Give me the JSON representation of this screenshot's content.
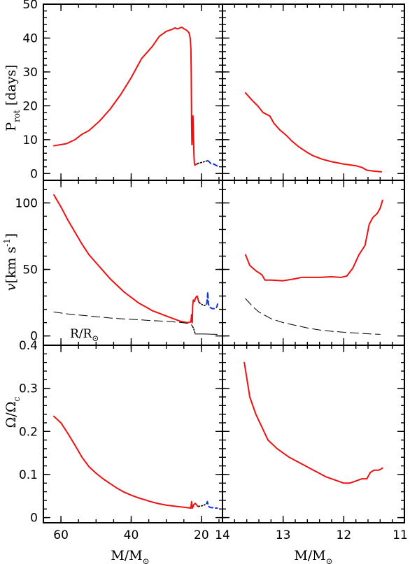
{
  "chart_data": [
    {
      "id": "prot_left",
      "type": "line",
      "ylabel": "P_rot [days]",
      "xlim": [
        65,
        14
      ],
      "ylim": [
        -2,
        50
      ],
      "xticks_major": [
        60,
        40,
        20
      ],
      "xticks_minor_step": 5,
      "yticks_major": [
        0,
        10,
        20,
        30,
        40,
        50
      ],
      "yticks_minor_step": 2,
      "xticklabels": [],
      "yticklabels": [
        "0",
        "10",
        "20",
        "30",
        "40",
        "50"
      ],
      "series": [
        {
          "style": "red-solid",
          "x": [
            62.0,
            58.5,
            56.0,
            54.0,
            52.0,
            49.0,
            46.0,
            43.0,
            40.0,
            37.0,
            34.0,
            32.0,
            30.0,
            28.5,
            27.5,
            26.8,
            25.6,
            24.9,
            24.5,
            23.9,
            23.5,
            23.2,
            23.0,
            22.9,
            22.8,
            22.7,
            22.5,
            22.4,
            22.3,
            22.2,
            22.1,
            22.0,
            21.9,
            21.8,
            21.6,
            21.3,
            21.0
          ],
          "y": [
            8.2,
            8.8,
            10.0,
            11.6,
            12.7,
            15.5,
            19.0,
            23.3,
            28.3,
            34.0,
            37.5,
            40.5,
            42.0,
            42.5,
            43.0,
            42.7,
            43.2,
            42.7,
            42.5,
            42.0,
            41.5,
            40.0,
            37.0,
            30.0,
            15.0,
            8.5,
            12.0,
            17.0,
            13.0,
            8.5,
            5.0,
            3.0,
            2.5,
            2.5,
            2.7,
            2.8,
            3.0
          ]
        },
        {
          "style": "black-dotted",
          "x": [
            21.0,
            20.2,
            19.5,
            18.8,
            18.2
          ],
          "y": [
            3.0,
            3.2,
            3.4,
            3.6,
            3.8
          ]
        },
        {
          "style": "blue-dashed",
          "x": [
            18.2,
            17.8,
            17.3,
            16.8,
            16.3,
            15.8,
            15.4
          ],
          "y": [
            3.8,
            3.5,
            2.9,
            2.9,
            2.7,
            2.4,
            2.2
          ]
        }
      ]
    },
    {
      "id": "prot_right",
      "type": "line",
      "xlim": [
        14,
        11
      ],
      "ylim": [
        -2,
        50
      ],
      "xticks_major": [
        13,
        12
      ],
      "xticks_minor_step": 0.2,
      "yticks_major": [
        0,
        10,
        20,
        30,
        40,
        50
      ],
      "yticks_minor_step": 2,
      "xticklabels": [],
      "yticklabels": [],
      "series": [
        {
          "style": "red-solid",
          "x": [
            13.62,
            13.52,
            13.42,
            13.33,
            13.22,
            13.15,
            13.05,
            12.95,
            12.85,
            12.75,
            12.6,
            12.5,
            12.35,
            12.2,
            12.0,
            11.8,
            11.7,
            11.62,
            11.5,
            11.38
          ],
          "y": [
            23.8,
            21.8,
            20.0,
            18.0,
            17.0,
            14.8,
            12.8,
            11.3,
            9.5,
            8.0,
            6.2,
            5.2,
            4.2,
            3.5,
            2.8,
            2.3,
            1.8,
            1.0,
            0.7,
            0.5
          ]
        }
      ]
    },
    {
      "id": "v_left",
      "type": "line",
      "ylabel": "v [km s^-1]",
      "annotation": "R/R⊙",
      "xlim": [
        65,
        14
      ],
      "ylim": [
        -7,
        117
      ],
      "xticks_major": [
        60,
        40,
        20
      ],
      "xticks_minor_step": 5,
      "yticks_major": [
        0,
        50,
        100
      ],
      "yticks_minor_step": 10,
      "xticklabels": [],
      "yticklabels": [
        "0",
        "50",
        "100"
      ],
      "series": [
        {
          "style": "red-solid",
          "x": [
            62.0,
            60.0,
            58.0,
            56.0,
            54.0,
            52.0,
            50.0,
            48.0,
            46.0,
            44.0,
            42.0,
            40.0,
            38.0,
            36.0,
            34.0,
            32.0,
            30.0,
            28.0,
            26.0,
            24.0,
            23.0,
            22.8,
            22.7,
            22.6,
            22.5,
            22.4,
            22.3,
            22.0,
            21.6,
            21.2,
            21.0,
            20.8,
            20.6
          ],
          "y": [
            106,
            97,
            87,
            78,
            69,
            61,
            55,
            49,
            43,
            38,
            33,
            29,
            25,
            22,
            19,
            17,
            15,
            13,
            11,
            10,
            10.5,
            16,
            13,
            10,
            22,
            25,
            27,
            26,
            29,
            30,
            28,
            26,
            25
          ]
        },
        {
          "style": "black-dotted",
          "x": [
            20.6,
            20.0,
            19.5,
            19.0,
            18.5
          ],
          "y": [
            25,
            24,
            23,
            23,
            24
          ]
        },
        {
          "style": "blue-dashed",
          "x": [
            18.5,
            18.3,
            18.2,
            18.1,
            18.0,
            17.7,
            17.3,
            16.8,
            16.2,
            15.8,
            15.6,
            15.4
          ],
          "y": [
            24,
            29,
            33,
            28,
            24,
            22,
            21,
            20.5,
            20.5,
            21,
            22,
            24
          ]
        },
        {
          "style": "black-dashed",
          "x": [
            62.0,
            58.0,
            54.0,
            50.0,
            46.0,
            42.0,
            38.0,
            34.0,
            30.0,
            26.0,
            24.0,
            23.0,
            22.5
          ],
          "y": [
            18,
            16.5,
            15.5,
            14.5,
            13.5,
            12.8,
            12.2,
            11.5,
            11.0,
            10.2,
            9.5,
            9.0,
            7.0
          ]
        },
        {
          "style": "black-dotted",
          "x": [
            22.5,
            22.2,
            22.0,
            21.8
          ],
          "y": [
            7.0,
            5.5,
            3.5,
            2.0
          ]
        },
        {
          "style": "black-solid",
          "x": [
            21.8,
            20.5,
            19.0,
            17.0,
            15.5
          ],
          "y": [
            1.5,
            1.5,
            1.5,
            1.3,
            1.2
          ]
        }
      ]
    },
    {
      "id": "v_right",
      "type": "line",
      "xlim": [
        14,
        11
      ],
      "ylim": [
        -7,
        117
      ],
      "xticks_major": [
        13,
        12
      ],
      "xticks_minor_step": 0.2,
      "yticks_major": [
        0,
        50,
        100
      ],
      "yticks_minor_step": 10,
      "xticklabels": [],
      "yticklabels": [],
      "series": [
        {
          "style": "red-solid",
          "x": [
            13.62,
            13.55,
            13.45,
            13.35,
            13.3,
            13.2,
            13.0,
            12.8,
            12.7,
            12.6,
            12.4,
            12.2,
            12.05,
            11.95,
            11.85,
            11.75,
            11.65,
            11.58,
            11.52,
            11.45,
            11.4,
            11.36
          ],
          "y": [
            61,
            53,
            49,
            46,
            42,
            42,
            41.5,
            43,
            44,
            44,
            44,
            44.5,
            44,
            45,
            51,
            61,
            68,
            84,
            89,
            92,
            96,
            102
          ]
        },
        {
          "style": "black-dashed",
          "x": [
            13.62,
            13.5,
            13.4,
            13.2,
            13.0,
            12.8,
            12.6,
            12.4,
            12.2,
            12.0,
            11.8,
            11.6,
            11.4
          ],
          "y": [
            28,
            22,
            18,
            13,
            10,
            8,
            6,
            4.5,
            3.5,
            2.8,
            2.2,
            1.6,
            1.2
          ]
        }
      ]
    },
    {
      "id": "omega_left",
      "type": "line",
      "ylabel": "Ω/Ω_c",
      "xlabel": "M/M⊙",
      "xlim": [
        65,
        14
      ],
      "ylim": [
        -0.012,
        0.4
      ],
      "xticks_major": [
        60,
        40,
        20
      ],
      "xticks_minor_step": 5,
      "yticks_major": [
        0,
        0.1,
        0.2,
        0.3,
        0.4
      ],
      "yticks_minor_step": 0.02,
      "xticklabels": [
        "60",
        "40",
        "20",
        "14"
      ],
      "yticklabels": [
        "0",
        "0.1",
        "0.2",
        "0.3",
        "0.4"
      ],
      "series": [
        {
          "style": "red-solid",
          "x": [
            62.0,
            60.0,
            58.0,
            56.0,
            54.0,
            52.0,
            50.0,
            48.0,
            46.0,
            44.0,
            42.0,
            40.0,
            38.0,
            36.0,
            34.0,
            32.0,
            30.0,
            28.0,
            26.0,
            24.0,
            23.0,
            22.8,
            22.7,
            22.6,
            22.5,
            22.2,
            21.8,
            21.4,
            21.0,
            20.8
          ],
          "y": [
            0.235,
            0.22,
            0.195,
            0.168,
            0.14,
            0.118,
            0.103,
            0.09,
            0.079,
            0.068,
            0.059,
            0.052,
            0.046,
            0.041,
            0.036,
            0.032,
            0.029,
            0.027,
            0.025,
            0.023,
            0.022,
            0.037,
            0.025,
            0.022,
            0.023,
            0.03,
            0.033,
            0.03,
            0.026,
            0.026
          ]
        },
        {
          "style": "black-dotted",
          "x": [
            20.8,
            20.0,
            19.5,
            19.0,
            18.5
          ],
          "y": [
            0.026,
            0.027,
            0.028,
            0.03,
            0.033
          ]
        },
        {
          "style": "blue-dashed",
          "x": [
            18.5,
            18.3,
            18.1,
            17.9,
            17.6,
            17.2,
            16.6,
            16.0,
            15.5
          ],
          "y": [
            0.033,
            0.037,
            0.03,
            0.026,
            0.024,
            0.023,
            0.023,
            0.022,
            0.022
          ]
        }
      ]
    },
    {
      "id": "omega_right",
      "type": "line",
      "xlabel": "M/M⊙",
      "xlim": [
        14,
        11
      ],
      "ylim": [
        -0.012,
        0.4
      ],
      "xticks_major": [
        13,
        12
      ],
      "xticks_minor_step": 0.2,
      "yticks_major": [
        0,
        0.1,
        0.2,
        0.3,
        0.4
      ],
      "yticks_minor_step": 0.02,
      "xticklabels": [
        "13",
        "12",
        "11"
      ],
      "yticklabels": [],
      "series": [
        {
          "style": "red-solid",
          "x": [
            13.64,
            13.55,
            13.45,
            13.35,
            13.25,
            13.1,
            12.9,
            12.7,
            12.5,
            12.3,
            12.1,
            12.0,
            11.9,
            11.8,
            11.7,
            11.62,
            11.56,
            11.5,
            11.42,
            11.36
          ],
          "y": [
            0.36,
            0.28,
            0.24,
            0.21,
            0.18,
            0.16,
            0.14,
            0.125,
            0.11,
            0.095,
            0.085,
            0.08,
            0.08,
            0.085,
            0.09,
            0.09,
            0.105,
            0.11,
            0.11,
            0.115
          ]
        }
      ]
    }
  ],
  "labels": {
    "prot_ylabel_main": "P",
    "prot_ylabel_sub": "rot",
    "prot_ylabel_unit": " [days]",
    "v_ylabel_main": "v",
    "v_ylabel_unit": "[km s",
    "v_ylabel_sup": "-1",
    "v_ylabel_close": "]",
    "omega_ylabel_main": "Ω/Ω",
    "omega_ylabel_sub": "c",
    "xlabel_main": "M/M",
    "xlabel_sub": "⊙",
    "r_annotation_main": "R/R",
    "r_annotation_sub": "⊙"
  },
  "colors": {
    "red": "#ee1111",
    "blue": "#1133dd",
    "black": "#000000"
  }
}
